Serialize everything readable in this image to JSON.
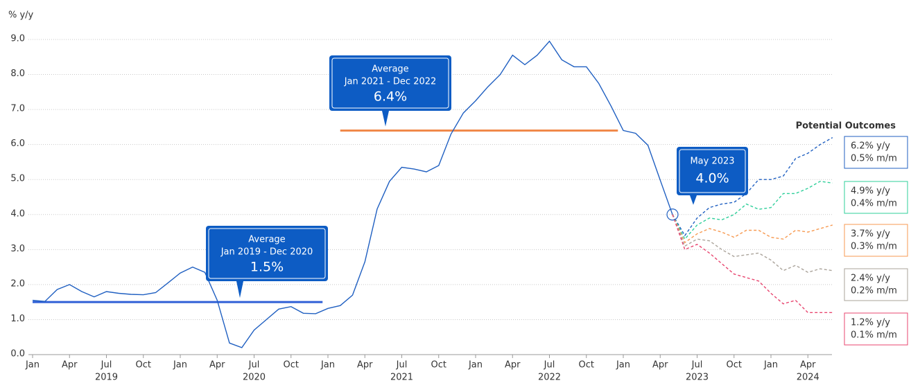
{
  "chart_data": {
    "type": "line",
    "y_axis_label": "% y/y",
    "ylim": [
      0,
      9.0
    ],
    "yticks": [
      {
        "value": 0,
        "label": "0.0"
      },
      {
        "value": 1,
        "label": "1.0"
      },
      {
        "value": 2,
        "label": "2.0"
      },
      {
        "value": 3,
        "label": "3.0"
      },
      {
        "value": 4,
        "label": "4.0"
      },
      {
        "value": 5,
        "label": "5.0"
      },
      {
        "value": 6,
        "label": "6.0"
      },
      {
        "value": 7,
        "label": "7.0"
      },
      {
        "value": 8,
        "label": "8.0"
      },
      {
        "value": 9,
        "label": "9.0"
      }
    ],
    "xticks": [
      {
        "value": "2019-01",
        "label": "Jan"
      },
      {
        "value": "2019-04",
        "label": "Apr"
      },
      {
        "value": "2019-07",
        "label": "Jul"
      },
      {
        "value": "2019-10",
        "label": "Oct"
      },
      {
        "value": "2020-01",
        "label": "Jan"
      },
      {
        "value": "2020-04",
        "label": "Apr"
      },
      {
        "value": "2020-07",
        "label": "Jul"
      },
      {
        "value": "2020-10",
        "label": "Oct"
      },
      {
        "value": "2021-01",
        "label": "Jan"
      },
      {
        "value": "2021-04",
        "label": "Apr"
      },
      {
        "value": "2021-07",
        "label": "Jul"
      },
      {
        "value": "2021-10",
        "label": "Oct"
      },
      {
        "value": "2022-01",
        "label": "Jan"
      },
      {
        "value": "2022-04",
        "label": "Apr"
      },
      {
        "value": "2022-07",
        "label": "Jul"
      },
      {
        "value": "2022-10",
        "label": "Oct"
      },
      {
        "value": "2023-01",
        "label": "Jan"
      },
      {
        "value": "2023-04",
        "label": "Apr"
      },
      {
        "value": "2023-07",
        "label": "Jul"
      },
      {
        "value": "2023-10",
        "label": "Oct"
      },
      {
        "value": "2024-01",
        "label": "Jan"
      },
      {
        "value": "2024-04",
        "label": "Apr"
      }
    ],
    "year_labels": [
      {
        "value": "2019-07",
        "label": "2019"
      },
      {
        "value": "2020-07",
        "label": "2020"
      },
      {
        "value": "2021-07",
        "label": "2021"
      },
      {
        "value": "2022-07",
        "label": "2022"
      },
      {
        "value": "2023-07",
        "label": "2023"
      },
      {
        "value": "2024-04",
        "label": "2024"
      }
    ],
    "x": [
      "2019-01",
      "2019-02",
      "2019-03",
      "2019-04",
      "2019-05",
      "2019-06",
      "2019-07",
      "2019-08",
      "2019-09",
      "2019-10",
      "2019-11",
      "2019-12",
      "2020-01",
      "2020-02",
      "2020-03",
      "2020-04",
      "2020-05",
      "2020-06",
      "2020-07",
      "2020-08",
      "2020-09",
      "2020-10",
      "2020-11",
      "2020-12",
      "2021-01",
      "2021-02",
      "2021-03",
      "2021-04",
      "2021-05",
      "2021-06",
      "2021-07",
      "2021-08",
      "2021-09",
      "2021-10",
      "2021-11",
      "2021-12",
      "2022-01",
      "2022-02",
      "2022-03",
      "2022-04",
      "2022-05",
      "2022-06",
      "2022-07",
      "2022-08",
      "2022-09",
      "2022-10",
      "2022-11",
      "2022-12",
      "2023-01",
      "2023-02",
      "2023-03",
      "2023-04",
      "2023-05"
    ],
    "series": [
      {
        "color": "#1f5fc1",
        "values": [
          1.55,
          1.52,
          1.86,
          2.0,
          1.8,
          1.65,
          1.8,
          1.75,
          1.72,
          1.71,
          1.77,
          2.05,
          2.33,
          2.5,
          2.35,
          1.55,
          0.33,
          0.2,
          0.7,
          1.0,
          1.3,
          1.37,
          1.18,
          1.17,
          1.32,
          1.4,
          1.7,
          2.65,
          4.16,
          4.95,
          5.35,
          5.3,
          5.22,
          5.4,
          6.3,
          6.9,
          7.25,
          7.65,
          8.0,
          8.55,
          8.28,
          8.55,
          8.95,
          8.42,
          8.22,
          8.22,
          7.75,
          7.1,
          6.4,
          6.32,
          5.98,
          4.98,
          4.0
        ]
      }
    ],
    "averages": [
      {
        "label": "Average",
        "period": "Jan 2019 - Dec 2020",
        "value": 1.5,
        "value_label": "1.5%",
        "start": "2019-01",
        "end": "2020-12",
        "color": "#2f5fd6"
      },
      {
        "label": "Average",
        "period": "Jan 2021 - Dec 2022",
        "value": 6.4,
        "value_label": "6.4%",
        "start": "2021-02",
        "end": "2022-12",
        "color": "#f0894a"
      }
    ],
    "current": {
      "label": "May 2023",
      "x": "2023-05",
      "value": 4.0,
      "value_label": "4.0%"
    },
    "outcomes_title": "Potential Outcomes",
    "outcomes_x": [
      "2023-05",
      "2023-06",
      "2023-07",
      "2023-08",
      "2023-09",
      "2023-10",
      "2023-11",
      "2023-12",
      "2024-01",
      "2024-02",
      "2024-03",
      "2024-04",
      "2024-05",
      "2024-06"
    ],
    "outcomes": [
      {
        "color": "#1f5fc1",
        "labels": [
          "6.2% y/y",
          "0.5% m/m"
        ],
        "values": [
          4.0,
          3.4,
          3.9,
          4.2,
          4.3,
          4.35,
          4.6,
          5.0,
          5.0,
          5.1,
          5.6,
          5.75,
          6.0,
          6.2
        ]
      },
      {
        "color": "#2ecf9a",
        "labels": [
          "4.9% y/y",
          "0.4% m/m"
        ],
        "values": [
          4.0,
          3.3,
          3.7,
          3.9,
          3.85,
          4.0,
          4.3,
          4.15,
          4.2,
          4.6,
          4.6,
          4.75,
          4.95,
          4.9
        ]
      },
      {
        "color": "#f79a52",
        "labels": [
          "3.7% y/y",
          "0.3% m/m"
        ],
        "values": [
          4.0,
          3.2,
          3.45,
          3.6,
          3.5,
          3.35,
          3.55,
          3.55,
          3.35,
          3.3,
          3.55,
          3.5,
          3.6,
          3.7
        ]
      },
      {
        "color": "#aaa39a",
        "labels": [
          "2.4% y/y",
          "0.2% m/m"
        ],
        "values": [
          4.0,
          3.1,
          3.3,
          3.25,
          3.0,
          2.8,
          2.85,
          2.9,
          2.7,
          2.4,
          2.55,
          2.35,
          2.45,
          2.4
        ]
      },
      {
        "color": "#e8456f",
        "labels": [
          "1.2% y/y",
          "0.1% m/m"
        ],
        "values": [
          4.0,
          3.0,
          3.15,
          2.9,
          2.6,
          2.3,
          2.2,
          2.1,
          1.75,
          1.45,
          1.55,
          1.2,
          1.2,
          1.2
        ]
      }
    ]
  }
}
